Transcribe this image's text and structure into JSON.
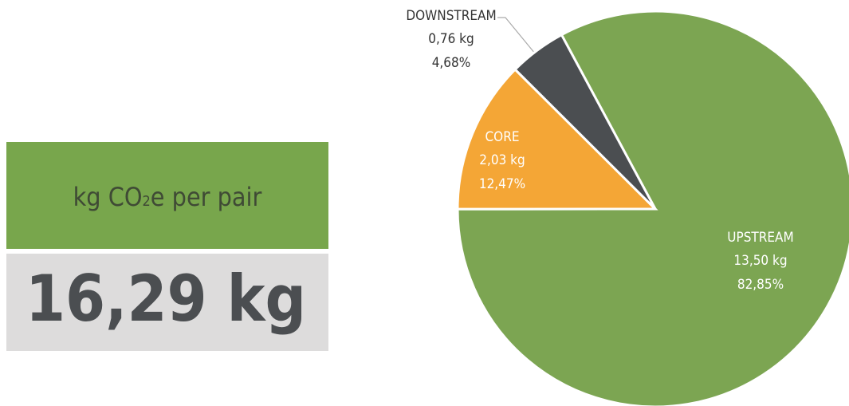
{
  "summary": {
    "unit_label": "kg CO",
    "unit_subscript": "2",
    "unit_suffix": "e per pair",
    "total": "16,29 kg"
  },
  "chart_data": {
    "type": "pie",
    "categories": [
      "UPSTREAM",
      "CORE",
      "DOWNSTREAM"
    ],
    "values": [
      82.85,
      12.47,
      4.68
    ],
    "value_labels": [
      "82,85%",
      "12,47%",
      "4,68%"
    ],
    "weight_labels": [
      "13,50 kg",
      "2,03 kg",
      "0,76 kg"
    ],
    "colors": [
      "#7ca552",
      "#f4a636",
      "#4b4e51"
    ]
  }
}
